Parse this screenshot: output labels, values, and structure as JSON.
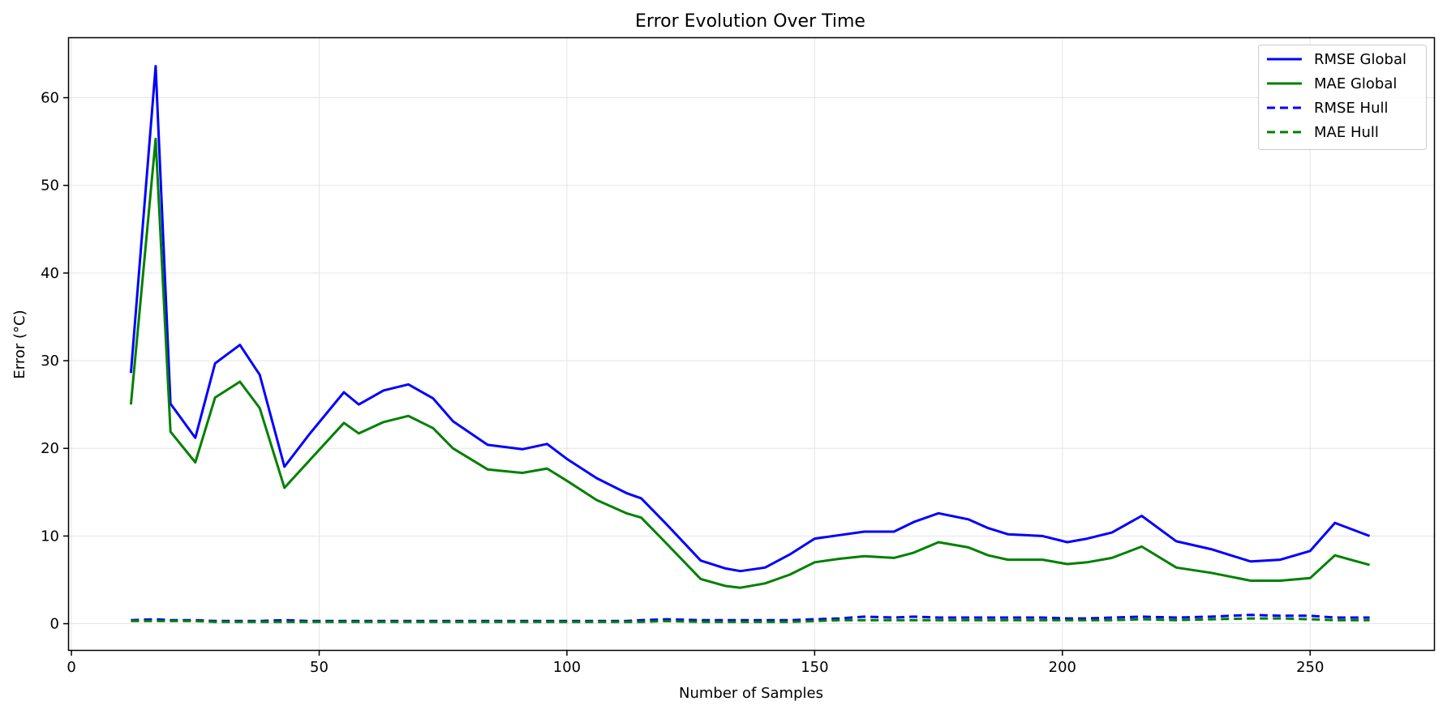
{
  "chart_data": {
    "type": "line",
    "title": "Error Evolution Over Time",
    "xlabel": "Number of Samples",
    "ylabel": "Error (°C)",
    "xlim": [
      -0.5,
      275
    ],
    "ylim": [
      -3.0,
      66.8
    ],
    "xticks": [
      0,
      50,
      100,
      150,
      200,
      250
    ],
    "yticks": [
      0,
      10,
      20,
      30,
      40,
      50,
      60
    ],
    "grid": true,
    "legend_position": "top-right",
    "x": [
      12,
      17,
      20,
      25,
      29,
      34,
      38,
      43,
      48,
      55,
      58,
      63,
      68,
      73,
      77,
      84,
      91,
      96,
      100,
      106,
      112,
      115,
      120,
      127,
      132,
      135,
      140,
      145,
      150,
      155,
      160,
      166,
      170,
      175,
      181,
      185,
      189,
      196,
      201,
      205,
      210,
      216,
      223,
      230,
      238,
      244,
      250,
      255,
      262
    ],
    "series": [
      {
        "name": "RMSE Global",
        "color": "#0000ff",
        "style": "solid",
        "values": [
          28.6,
          63.6,
          25.1,
          21.2,
          29.7,
          31.8,
          28.4,
          17.9,
          21.6,
          26.4,
          25.0,
          26.6,
          27.3,
          25.7,
          23.1,
          20.4,
          19.9,
          20.5,
          18.8,
          16.6,
          14.9,
          14.3,
          11.4,
          7.2,
          6.3,
          6.0,
          6.4,
          7.9,
          9.7,
          10.1,
          10.5,
          10.5,
          11.6,
          12.6,
          11.9,
          10.9,
          10.2,
          10.0,
          9.3,
          9.7,
          10.4,
          12.3,
          9.4,
          8.5,
          7.1,
          7.3,
          8.3,
          11.5,
          10.0
        ]
      },
      {
        "name": "MAE Global",
        "color": "#008000",
        "style": "solid",
        "values": [
          25.0,
          55.3,
          21.9,
          18.4,
          25.8,
          27.6,
          24.6,
          15.5,
          18.6,
          22.9,
          21.7,
          23.0,
          23.7,
          22.3,
          20.0,
          17.6,
          17.2,
          17.7,
          16.3,
          14.1,
          12.6,
          12.1,
          9.2,
          5.1,
          4.3,
          4.1,
          4.6,
          5.6,
          7.0,
          7.4,
          7.7,
          7.5,
          8.1,
          9.3,
          8.7,
          7.8,
          7.3,
          7.3,
          6.8,
          7.0,
          7.5,
          8.8,
          6.4,
          5.8,
          4.9,
          4.9,
          5.2,
          7.8,
          6.7
        ]
      },
      {
        "name": "RMSE Hull",
        "color": "#0000ff",
        "style": "dashed",
        "values": [
          0.4,
          0.5,
          0.4,
          0.4,
          0.3,
          0.3,
          0.3,
          0.4,
          0.3,
          0.3,
          0.3,
          0.3,
          0.3,
          0.3,
          0.3,
          0.3,
          0.3,
          0.3,
          0.3,
          0.3,
          0.3,
          0.4,
          0.5,
          0.4,
          0.4,
          0.4,
          0.4,
          0.4,
          0.5,
          0.6,
          0.8,
          0.7,
          0.8,
          0.7,
          0.7,
          0.7,
          0.7,
          0.7,
          0.6,
          0.6,
          0.7,
          0.8,
          0.7,
          0.8,
          1.0,
          0.9,
          0.9,
          0.7,
          0.7
        ]
      },
      {
        "name": "MAE Hull",
        "color": "#008000",
        "style": "dashed",
        "values": [
          0.3,
          0.3,
          0.3,
          0.3,
          0.2,
          0.2,
          0.2,
          0.2,
          0.2,
          0.2,
          0.2,
          0.2,
          0.2,
          0.2,
          0.2,
          0.2,
          0.2,
          0.2,
          0.2,
          0.2,
          0.2,
          0.2,
          0.3,
          0.2,
          0.2,
          0.2,
          0.2,
          0.2,
          0.3,
          0.4,
          0.4,
          0.4,
          0.4,
          0.4,
          0.4,
          0.4,
          0.4,
          0.4,
          0.4,
          0.4,
          0.4,
          0.5,
          0.4,
          0.5,
          0.6,
          0.6,
          0.5,
          0.4,
          0.4
        ]
      }
    ]
  }
}
